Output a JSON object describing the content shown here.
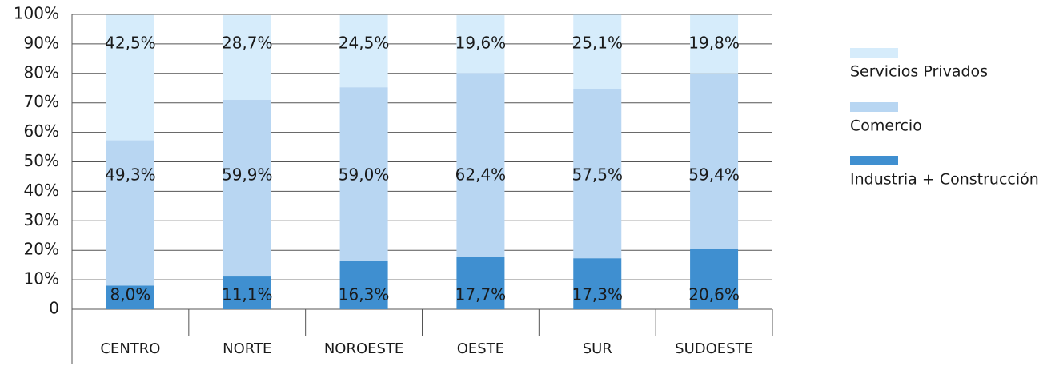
{
  "chart_data": {
    "type": "stacked_bar",
    "categories": [
      "CENTRO",
      "NORTE",
      "NOROESTE",
      "OESTE",
      "SUR",
      "SUDOESTE"
    ],
    "series": [
      {
        "name": "Industria + Construcción",
        "color": "#3f8fd0",
        "values": [
          8.0,
          11.1,
          16.3,
          17.7,
          17.3,
          20.6
        ],
        "value_labels": [
          "8,0%",
          "11,1%",
          "16,3%",
          "17,7%",
          "17,3%",
          "20,6%"
        ]
      },
      {
        "name": "Comercio",
        "color": "#b8d6f2",
        "values": [
          49.3,
          59.9,
          59.0,
          62.4,
          57.5,
          59.4
        ],
        "value_labels": [
          "49,3%",
          "59,9%",
          "59,0%",
          "62,4%",
          "57,5%",
          "59,4%"
        ]
      },
      {
        "name": "Servicios Privados",
        "color": "#d6ecfb",
        "values": [
          42.5,
          28.7,
          24.5,
          19.6,
          25.1,
          19.8
        ],
        "value_labels": [
          "42,5%",
          "28,7%",
          "24,5%",
          "19,6%",
          "25,1%",
          "19,8%"
        ]
      }
    ],
    "ylim": [
      0,
      100
    ],
    "yticks": [
      0,
      {
        "value": 10,
        "label": "10%"
      },
      {
        "value": 20,
        "label": "20%"
      },
      {
        "value": 30,
        "label": "30%"
      },
      {
        "value": 40,
        "label": "40%"
      },
      {
        "value": 50,
        "label": "50%"
      },
      {
        "value": 60,
        "label": "60%"
      },
      {
        "value": 70,
        "label": "70%"
      },
      {
        "value": 80,
        "label": "80%"
      },
      {
        "value": 90,
        "label": "90%"
      },
      {
        "value": 100,
        "label": "100%"
      }
    ],
    "grid": true
  }
}
